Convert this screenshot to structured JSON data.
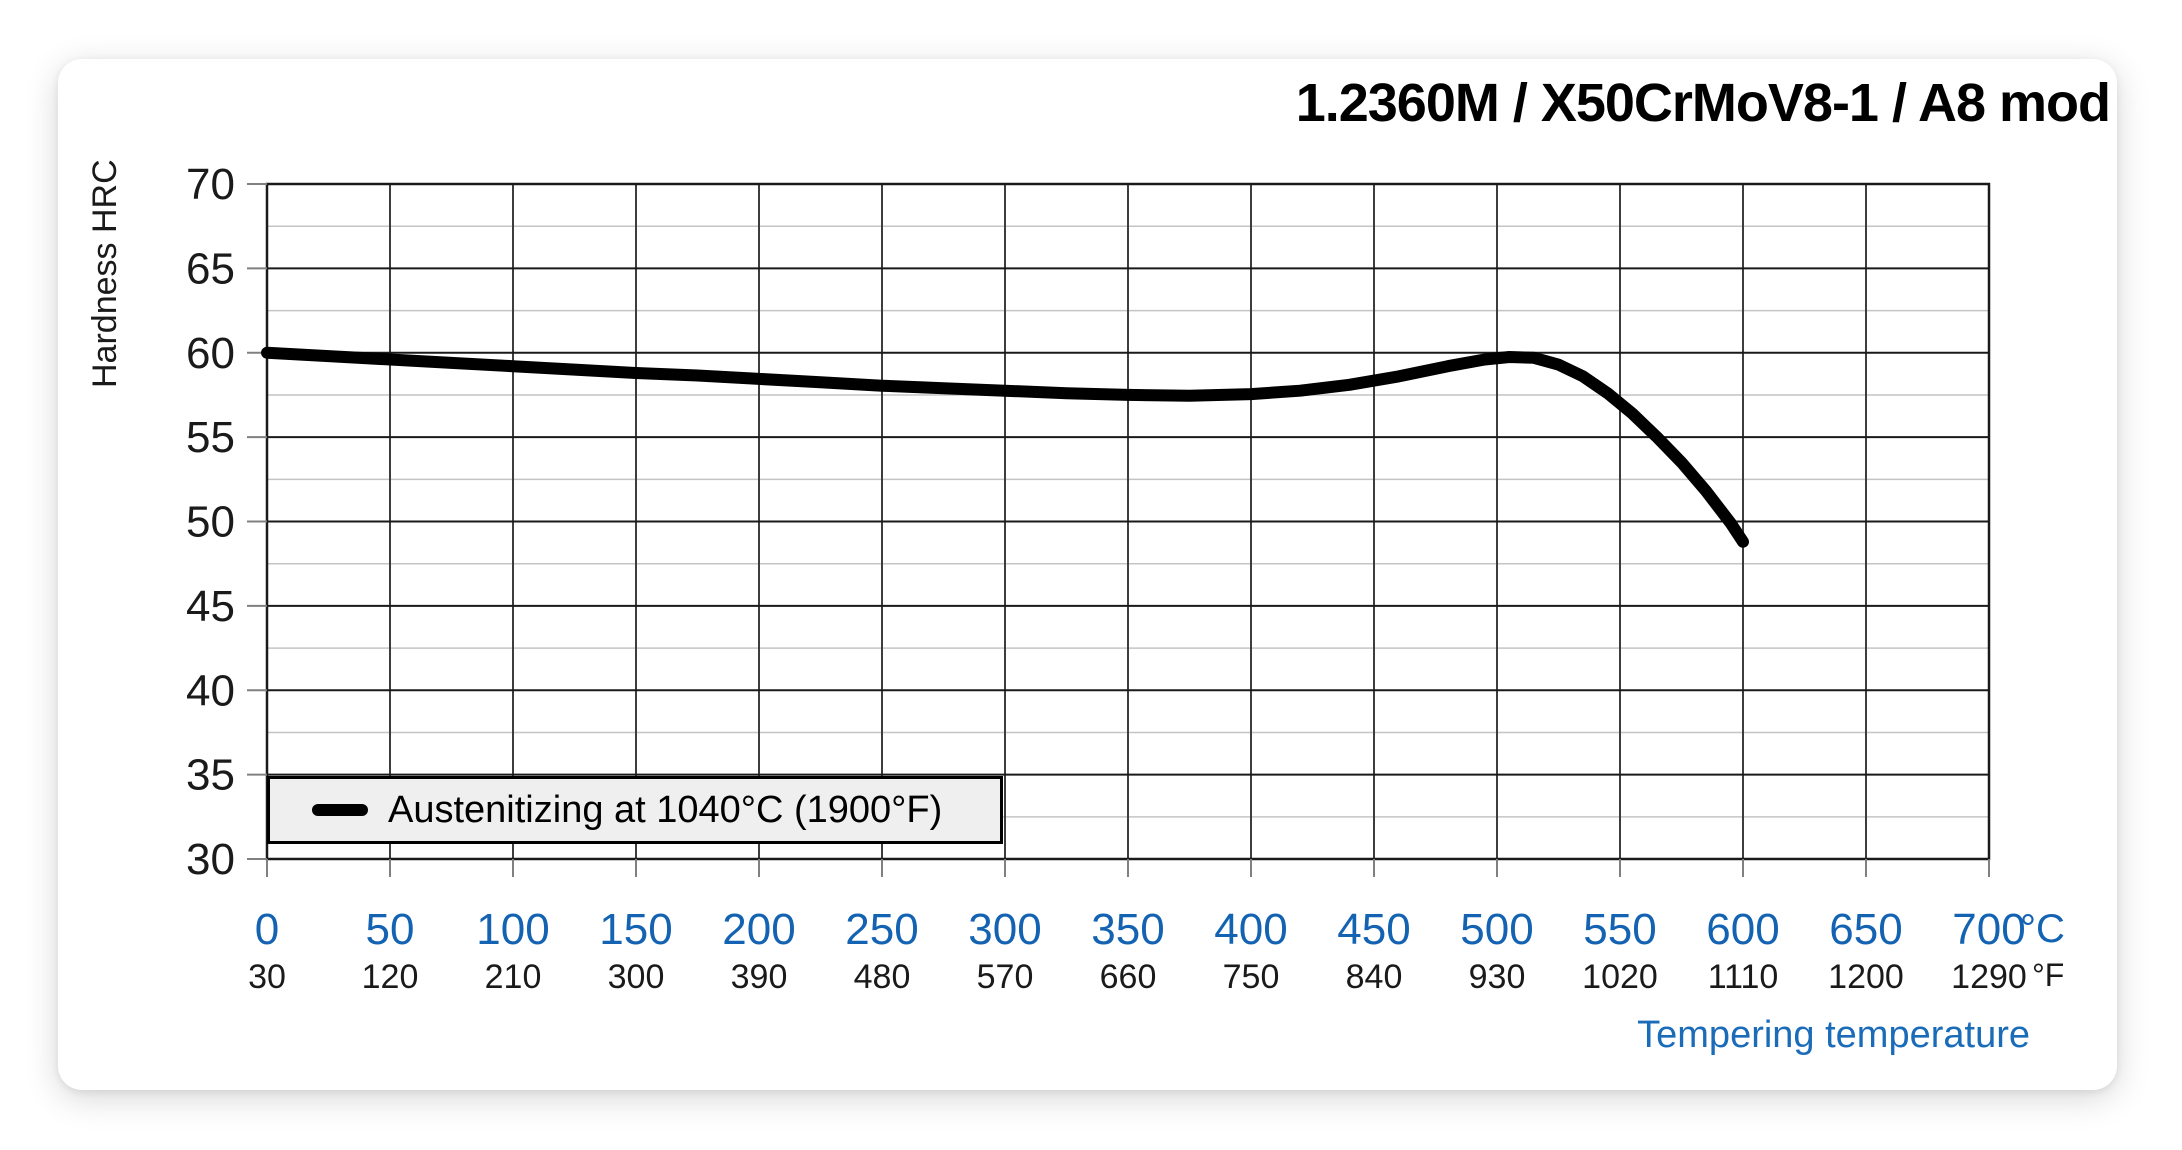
{
  "title": "1.2360M / X50CrMoV8-1 / A8 mod",
  "colors": {
    "accent_blue": "#1b6cb8",
    "tick_blue": "#1463b2",
    "text_black": "#1a1a1a",
    "grid_major": "#1a1a1a",
    "grid_minor": "#c4c4c4",
    "grid_vertical": "#3d3d3d",
    "axis_tick": "#808080",
    "legend_fill": "#efefef",
    "curve": "#000000",
    "card_bg": "#ffffff"
  },
  "chart_data": {
    "type": "line",
    "title": "1.2360M / X50CrMoV8-1 / A8 mod",
    "grid": "on",
    "x_axis": {
      "label": "Tempering temperature",
      "unit_primary": "°C",
      "unit_secondary": "°F",
      "range_c": [
        0,
        700
      ],
      "ticks_c": [
        0,
        50,
        100,
        150,
        200,
        250,
        300,
        350,
        400,
        450,
        500,
        550,
        600,
        650,
        700
      ],
      "ticks_f": [
        30,
        120,
        210,
        300,
        390,
        480,
        570,
        660,
        750,
        840,
        930,
        1020,
        1110,
        1200,
        1290
      ]
    },
    "y_axis": {
      "label": "Hardness HRC",
      "range": [
        30,
        70
      ],
      "ticks": [
        30,
        35,
        40,
        45,
        50,
        55,
        60,
        65,
        70
      ],
      "minor_step": 2.5
    },
    "legend": {
      "position": "bottom-left",
      "label": "Austenitizing at 1040°C (1900°F)"
    },
    "series": [
      {
        "name": "Austenitizing at 1040°C (1900°F)",
        "color": "#000000",
        "points": [
          [
            0,
            60.0
          ],
          [
            25,
            59.8
          ],
          [
            50,
            59.6
          ],
          [
            75,
            59.4
          ],
          [
            100,
            59.2
          ],
          [
            125,
            59.0
          ],
          [
            150,
            58.8
          ],
          [
            175,
            58.65
          ],
          [
            200,
            58.45
          ],
          [
            225,
            58.25
          ],
          [
            250,
            58.05
          ],
          [
            275,
            57.9
          ],
          [
            300,
            57.75
          ],
          [
            325,
            57.6
          ],
          [
            350,
            57.5
          ],
          [
            375,
            57.45
          ],
          [
            400,
            57.55
          ],
          [
            420,
            57.75
          ],
          [
            440,
            58.1
          ],
          [
            460,
            58.6
          ],
          [
            480,
            59.2
          ],
          [
            495,
            59.6
          ],
          [
            505,
            59.75
          ],
          [
            515,
            59.7
          ],
          [
            525,
            59.3
          ],
          [
            535,
            58.6
          ],
          [
            545,
            57.6
          ],
          [
            555,
            56.4
          ],
          [
            565,
            55.0
          ],
          [
            575,
            53.5
          ],
          [
            585,
            51.8
          ],
          [
            595,
            49.9
          ],
          [
            600,
            48.8
          ]
        ]
      }
    ]
  }
}
